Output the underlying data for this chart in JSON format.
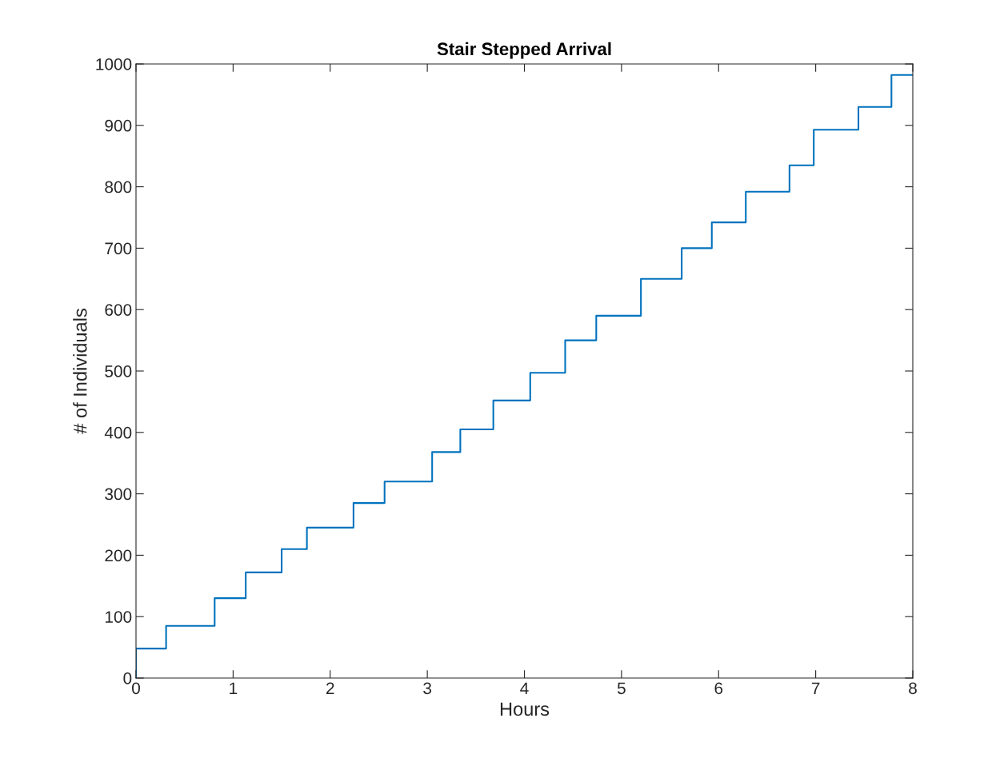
{
  "chart_data": {
    "type": "step",
    "title": "Stair Stepped Arrival",
    "xlabel": "Hours",
    "ylabel": "# of Individuals",
    "xlim": [
      0,
      8
    ],
    "xticks": [
      0,
      1,
      2,
      3,
      4,
      5,
      6,
      7,
      8
    ],
    "ylim": [
      0,
      1000
    ],
    "yticks": [
      0,
      100,
      200,
      300,
      400,
      500,
      600,
      700,
      800,
      900,
      1000
    ],
    "grid": false,
    "legend": false,
    "series": [
      {
        "color": "#0072bd",
        "x": [
          0,
          0,
          0.31,
          0.81,
          1.13,
          1.5,
          1.76,
          2.24,
          2.56,
          3.05,
          3.34,
          3.68,
          4.06,
          4.42,
          4.74,
          5.2,
          5.62,
          5.93,
          6.28,
          6.73,
          6.98,
          7.44,
          7.78,
          8
        ],
        "values": [
          0,
          48,
          85,
          130,
          172,
          210,
          245,
          285,
          320,
          368,
          405,
          452,
          497,
          550,
          590,
          650,
          700,
          742,
          792,
          835,
          893,
          930,
          982,
          982
        ]
      }
    ]
  }
}
